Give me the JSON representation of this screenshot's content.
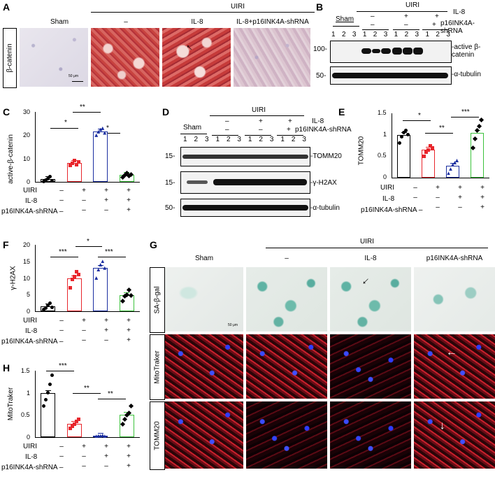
{
  "panels": {
    "A": "A",
    "B": "B",
    "C": "C",
    "D": "D",
    "E": "E",
    "F": "F",
    "G": "G",
    "H": "H"
  },
  "panelA": {
    "ylabel": "β-catenin",
    "uiri": "UIRI",
    "groups": [
      "Sham",
      "–",
      "IL-8",
      "IL-8+p16INK4A-shRNA"
    ],
    "scalebar": "50 μm"
  },
  "panelB": {
    "uiri": "UIRI",
    "il8_label": "IL-8",
    "shrna_label": "p16INK4A-shRNA",
    "sham": "Sham",
    "lanes": [
      "1",
      "2",
      "3",
      "1",
      "2",
      "3",
      "1",
      "2",
      "3",
      "1",
      "2",
      "3"
    ],
    "signs_il8": [
      "–",
      "+",
      "+"
    ],
    "signs_shrna": [
      "–",
      "–",
      "+"
    ],
    "mw": [
      "100-",
      "50-"
    ],
    "bands": [
      "-active β-catenin",
      "-α-tubulin"
    ]
  },
  "panelC": {
    "ylabel": "active-β-catenin",
    "yticks": [
      "0",
      "10",
      "20",
      "30"
    ],
    "sig": [
      "*",
      "**",
      "*"
    ],
    "rows": [
      {
        "label": "UIRI",
        "signs": [
          "–",
          "+",
          "+",
          "+"
        ]
      },
      {
        "label": "IL-8",
        "signs": [
          "–",
          "–",
          "+",
          "+"
        ]
      },
      {
        "label": "p16INK4A-shRNA –",
        "signs": [
          "",
          "–",
          "–",
          "+"
        ]
      }
    ]
  },
  "panelD": {
    "uiri": "UIRI",
    "il8_label": "IL-8",
    "shrna_label": "p16INK4A-shRNA",
    "sham": "Sham",
    "lanes": [
      "1",
      "2",
      "3",
      "1",
      "2",
      "3",
      "1",
      "2",
      "3",
      "1",
      "2",
      "3"
    ],
    "signs_il8": [
      "–",
      "+",
      "+"
    ],
    "signs_shrna": [
      "–",
      "–",
      "+"
    ],
    "mw": [
      "15-",
      "15-",
      "50-"
    ],
    "bands": [
      "-TOMM20",
      "-γ-H2AX",
      "-α-tubulin"
    ]
  },
  "panelE": {
    "ylabel": "TOMM20",
    "yticks": [
      "0",
      "0.5",
      "1",
      "1.5"
    ],
    "sig": [
      "*",
      "**",
      "***"
    ],
    "rows": [
      {
        "label": "UIRI",
        "signs": [
          "–",
          "+",
          "+",
          "+"
        ]
      },
      {
        "label": "IL-8",
        "signs": [
          "–",
          "–",
          "+",
          "+"
        ]
      },
      {
        "label": "p16INK4A-shRNA –",
        "signs": [
          "",
          "–",
          "–",
          "+"
        ]
      }
    ]
  },
  "panelF": {
    "ylabel": "γ-H2AX",
    "yticks": [
      "0",
      "5",
      "10",
      "15",
      "20"
    ],
    "sig": [
      "***",
      "*",
      "***"
    ],
    "rows": [
      {
        "label": "UIRI",
        "signs": [
          "–",
          "+",
          "+",
          "+"
        ]
      },
      {
        "label": "IL-8",
        "signs": [
          "–",
          "–",
          "+",
          "+"
        ]
      },
      {
        "label": "p16INK4A-shRNA –",
        "signs": [
          "",
          "–",
          "–",
          "+"
        ]
      }
    ]
  },
  "panelG": {
    "uiri": "UIRI",
    "groups": [
      "Sham",
      "–",
      "IL-8",
      "p16INK4A-shRNA"
    ],
    "rows": [
      "SA-β-gal",
      "MitoTraker",
      "TOMM20"
    ],
    "scalebar": "50 μm"
  },
  "panelH": {
    "ylabel": "MitoTraker",
    "yticks": [
      "0",
      "0.5",
      "1",
      "1.5"
    ],
    "sig": [
      "***",
      "**",
      "**"
    ],
    "rows": [
      {
        "label": "UIRI",
        "signs": [
          "–",
          "+",
          "+",
          "+"
        ]
      },
      {
        "label": "IL-8",
        "signs": [
          "–",
          "–",
          "+",
          "+"
        ]
      },
      {
        "label": "p16INK4A-shRNA –",
        "signs": [
          "",
          "–",
          "–",
          "+"
        ]
      }
    ]
  },
  "chart_data": [
    {
      "type": "bar",
      "panel": "C",
      "ylabel": "active-β-catenin",
      "ylim": [
        0,
        30
      ],
      "categories": [
        "Sham",
        "UIRI",
        "UIRI+IL-8",
        "UIRI+IL-8+p16INK4A-shRNA"
      ],
      "values": [
        1.2,
        8.0,
        21.5,
        3.0
      ],
      "points": [
        [
          0.3,
          0.8,
          1.5,
          2.4,
          0.5
        ],
        [
          7.0,
          8.0,
          9.2,
          7.5,
          8.5
        ],
        [
          20.0,
          21.5,
          22.5,
          23.0,
          21.0
        ],
        [
          2.0,
          3.0,
          3.8,
          2.5,
          3.2
        ]
      ],
      "colors": [
        "#000000",
        "#e8262c",
        "#1a2ea0",
        "#3cc23c"
      ]
    },
    {
      "type": "bar",
      "panel": "E",
      "ylabel": "TOMM20",
      "ylim": [
        0,
        1.5
      ],
      "categories": [
        "Sham",
        "UIRI",
        "UIRI+IL-8",
        "UIRI+IL-8+p16INK4A-shRNA"
      ],
      "values": [
        1.0,
        0.65,
        0.27,
        1.05
      ],
      "points": [
        [
          0.8,
          0.95,
          1.05,
          1.1,
          1.0
        ],
        [
          0.5,
          0.6,
          0.65,
          0.75,
          0.7
        ],
        [
          0.1,
          0.2,
          0.3,
          0.35,
          0.4
        ],
        [
          0.7,
          0.9,
          1.1,
          1.2,
          1.35
        ]
      ],
      "colors": [
        "#000000",
        "#e8262c",
        "#1a2ea0",
        "#3cc23c"
      ]
    },
    {
      "type": "bar",
      "panel": "F",
      "ylabel": "γ-H2AX",
      "ylim": [
        0,
        20
      ],
      "categories": [
        "Sham",
        "UIRI",
        "UIRI+IL-8",
        "UIRI+IL-8+p16INK4A-shRNA"
      ],
      "values": [
        1.5,
        10.0,
        13.0,
        4.8
      ],
      "points": [
        [
          0.5,
          1.0,
          1.8,
          2.5,
          1.2
        ],
        [
          7.0,
          9.5,
          10.5,
          12.0,
          11.0
        ],
        [
          10.0,
          12.5,
          14.0,
          15.0,
          13.0
        ],
        [
          3.0,
          4.5,
          5.0,
          6.5,
          4.8
        ]
      ],
      "colors": [
        "#000000",
        "#e8262c",
        "#1a2ea0",
        "#3cc23c"
      ]
    },
    {
      "type": "bar",
      "panel": "H",
      "ylabel": "MitoTraker",
      "ylim": [
        0,
        1.5
      ],
      "categories": [
        "Sham",
        "UIRI",
        "UIRI+IL-8",
        "UIRI+IL-8+p16INK4A-shRNA"
      ],
      "values": [
        1.0,
        0.3,
        0.03,
        0.5
      ],
      "points": [
        [
          0.7,
          0.85,
          1.0,
          1.2,
          1.4
        ],
        [
          0.2,
          0.25,
          0.3,
          0.35,
          0.4
        ],
        [
          0.02,
          0.03,
          0.03,
          0.04,
          0.02
        ],
        [
          0.3,
          0.4,
          0.5,
          0.55,
          0.7
        ]
      ],
      "colors": [
        "#000000",
        "#e8262c",
        "#1a2ea0",
        "#3cc23c"
      ]
    }
  ]
}
